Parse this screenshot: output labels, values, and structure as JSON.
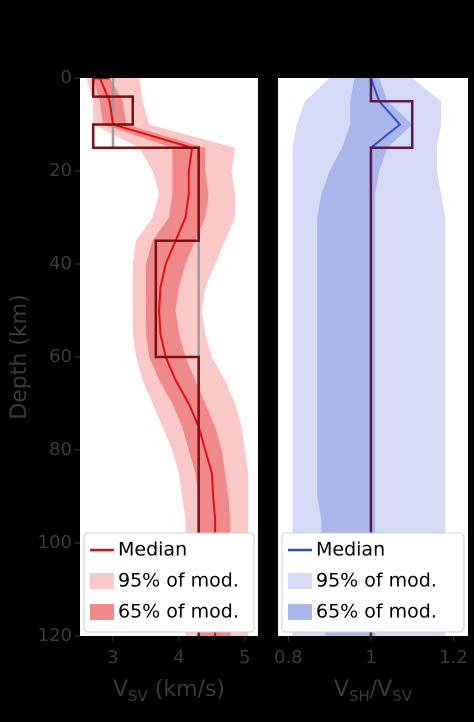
{
  "chart_data": [
    {
      "type": "profile",
      "xlabel": [
        {
          "text": "V"
        },
        {
          "text": "SV",
          "sub": true
        },
        {
          "text": " (km/s)"
        }
      ],
      "ylabel": "Depth (km)",
      "xlim": [
        2.5,
        5.2
      ],
      "xticks": [
        3,
        4,
        5
      ],
      "ylim": [
        0,
        120
      ],
      "yticks": [
        0,
        20,
        40,
        60,
        80,
        100,
        120
      ],
      "depths": [
        0,
        5,
        10,
        15,
        20,
        25,
        30,
        35,
        40,
        45,
        50,
        55,
        60,
        65,
        70,
        75,
        80,
        85,
        90,
        95,
        100,
        105,
        110,
        115,
        120
      ],
      "bands": [
        {
          "name": "95% of mod.",
          "color": "#fbc8c8",
          "low": [
            2.6,
            2.7,
            2.7,
            3.4,
            3.6,
            3.7,
            3.6,
            3.35,
            3.3,
            3.3,
            3.3,
            3.3,
            3.35,
            3.45,
            3.6,
            3.75,
            3.9,
            4.0,
            4.05,
            4.1,
            4.1,
            4.1,
            4.1,
            4.1,
            4.1
          ],
          "high": [
            3.4,
            3.45,
            3.55,
            4.85,
            4.8,
            4.85,
            4.85,
            4.7,
            4.55,
            4.4,
            4.35,
            4.4,
            4.5,
            4.7,
            4.85,
            4.95,
            5.0,
            5.05,
            5.05,
            5.05,
            5.05,
            5.05,
            5.05,
            5.05,
            5.05
          ]
        },
        {
          "name": "65% of mod.",
          "color": "#f08a8a",
          "low": [
            2.7,
            2.8,
            2.85,
            3.9,
            3.9,
            3.9,
            3.85,
            3.6,
            3.5,
            3.5,
            3.5,
            3.5,
            3.55,
            3.7,
            3.9,
            4.05,
            4.15,
            4.25,
            4.3,
            4.3,
            4.3,
            4.3,
            4.3,
            4.3,
            4.3
          ],
          "high": [
            2.95,
            3.15,
            3.2,
            4.4,
            4.4,
            4.45,
            4.4,
            4.25,
            4.1,
            4.0,
            3.95,
            4.0,
            4.1,
            4.25,
            4.4,
            4.55,
            4.65,
            4.7,
            4.75,
            4.78,
            4.78,
            4.78,
            4.78,
            4.78,
            4.78
          ]
        }
      ],
      "reference": {
        "color": "#9a9a9a",
        "x": [
          3,
          3,
          4.3,
          4.3
        ],
        "depth": [
          0,
          15,
          15,
          120
        ]
      },
      "model": {
        "color": "#7a1010",
        "x": [
          2.95,
          2.7,
          2.7,
          3.3,
          3.3,
          2.7,
          2.7,
          4.3,
          4.3,
          3.65,
          3.65,
          4.3,
          4.3
        ],
        "depth": [
          0,
          0,
          4,
          4,
          10,
          10,
          15,
          15,
          35,
          35,
          60,
          60,
          120
        ]
      },
      "series": [
        {
          "name": "Median",
          "color": "#e01010",
          "values": [
            2.8,
            2.95,
            3.0,
            4.2,
            4.15,
            4.15,
            4.1,
            3.95,
            3.8,
            3.72,
            3.7,
            3.72,
            3.8,
            3.95,
            4.15,
            4.3,
            4.4,
            4.5,
            4.52,
            4.55,
            4.55,
            4.55,
            4.55,
            4.55,
            4.55
          ]
        }
      ]
    },
    {
      "type": "profile",
      "xlabel": [
        {
          "text": "V"
        },
        {
          "text": "SH",
          "sub": true
        },
        {
          "text": "/V"
        },
        {
          "text": "SV",
          "sub": true
        }
      ],
      "xlim": [
        0.775,
        1.235
      ],
      "xticks": [
        0.8,
        1,
        1.2
      ],
      "ylim": [
        0,
        120
      ],
      "depths": [
        0,
        5,
        10,
        15,
        20,
        25,
        30,
        35,
        40,
        45,
        50,
        55,
        60,
        65,
        70,
        75,
        80,
        85,
        90,
        95,
        100,
        105,
        110,
        115,
        120
      ],
      "bands": [
        {
          "name": "95% of mod.",
          "color": "#d5dbf5",
          "low": [
            0.9,
            0.84,
            0.82,
            0.81,
            0.81,
            0.81,
            0.81,
            0.81,
            0.81,
            0.81,
            0.81,
            0.81,
            0.81,
            0.81,
            0.81,
            0.81,
            0.81,
            0.81,
            0.81,
            0.81,
            0.81,
            0.81,
            0.81,
            0.81,
            0.81
          ],
          "high": [
            1.1,
            1.17,
            1.17,
            1.16,
            1.16,
            1.17,
            1.18,
            1.18,
            1.18,
            1.18,
            1.18,
            1.18,
            1.18,
            1.18,
            1.18,
            1.18,
            1.18,
            1.18,
            1.18,
            1.18,
            1.18,
            1.18,
            1.18,
            1.18,
            1.18
          ]
        },
        {
          "name": "65% of mod.",
          "color": "#aab6ea",
          "low": [
            0.96,
            0.95,
            0.95,
            0.93,
            0.9,
            0.88,
            0.87,
            0.87,
            0.87,
            0.87,
            0.87,
            0.87,
            0.87,
            0.87,
            0.87,
            0.87,
            0.87,
            0.87,
            0.87,
            0.88,
            0.88,
            0.88,
            0.88,
            0.89,
            0.89
          ],
          "high": [
            1.02,
            1.04,
            1.1,
            1.04,
            1.02,
            1.01,
            1.01,
            1.01,
            1.01,
            1.01,
            1.01,
            1.01,
            1.01,
            1.01,
            1.01,
            1.01,
            1.01,
            1.01,
            1.01,
            1.01,
            1.01,
            1.01,
            1.01,
            1.01,
            1.01
          ]
        }
      ],
      "model": {
        "color": "#5a1a50",
        "x": [
          1,
          1,
          1.1,
          1.1,
          1,
          1
        ],
        "depth": [
          0,
          5,
          5,
          15,
          15,
          120
        ]
      },
      "series": [
        {
          "name": "Median",
          "color": "#3050d0",
          "values": [
            1,
            1.02,
            1.07,
            1.0,
            1,
            1,
            1,
            1,
            1,
            1,
            1,
            1,
            1,
            1,
            1,
            1,
            1,
            1,
            1,
            1,
            1,
            1,
            1,
            1,
            1
          ]
        }
      ]
    }
  ]
}
